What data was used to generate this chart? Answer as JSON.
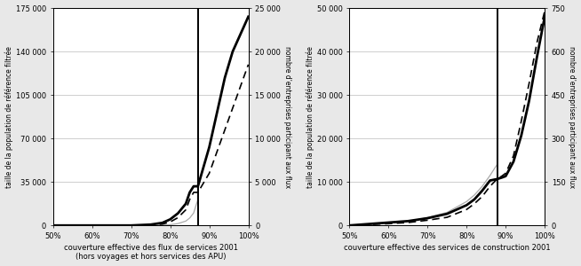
{
  "left": {
    "xlabel": "couverture effective des flux de services 2001\n(hors voyages et hors services des APU)",
    "ylabel_left": "taille de la population de référence filtrée",
    "ylabel_right": "nombre d'entreprises participant aux flux",
    "xlim": [
      0.5,
      1.0
    ],
    "ylim_left": [
      0,
      175000
    ],
    "ylim_right": [
      0,
      25000
    ],
    "yticks_left": [
      0,
      35000,
      70000,
      105000,
      140000,
      175000
    ],
    "ytick_labels_left": [
      "0",
      "35 000",
      "70 000",
      "105 000",
      "140 000",
      "175 000"
    ],
    "yticks_right": [
      0,
      5000,
      10000,
      15000,
      20000,
      25000
    ],
    "ytick_labels_right": [
      "0",
      "5 000",
      "10 000",
      "15 000",
      "20 000",
      "25 000"
    ],
    "xticks": [
      0.5,
      0.6,
      0.7,
      0.8,
      0.9,
      1.0
    ],
    "xtick_labels": [
      "50%",
      "60%",
      "70%",
      "80%",
      "90%",
      "100%"
    ],
    "vline_x": 0.871,
    "curve_left_x": [
      0.5,
      0.7,
      0.75,
      0.78,
      0.8,
      0.82,
      0.84,
      0.85,
      0.86,
      0.87,
      0.871,
      0.872,
      0.88,
      0.9,
      0.92,
      0.94,
      0.96,
      0.98,
      1.0
    ],
    "curve_left_y": [
      0,
      0,
      0,
      200,
      600,
      1500,
      3500,
      6000,
      10000,
      20000,
      175000,
      175000,
      175000,
      175000,
      175000,
      175000,
      175000,
      175000,
      175000
    ],
    "curve_thick_x": [
      0.5,
      0.7,
      0.75,
      0.78,
      0.8,
      0.82,
      0.84,
      0.85,
      0.86,
      0.871,
      0.9,
      0.92,
      0.94,
      0.96,
      0.98,
      1.0
    ],
    "curve_thick_y": [
      0,
      0,
      100,
      300,
      700,
      1400,
      2500,
      3800,
      4500,
      4500,
      9000,
      13000,
      17000,
      20000,
      22000,
      24000
    ],
    "curve_dash_x": [
      0.5,
      0.7,
      0.75,
      0.78,
      0.8,
      0.82,
      0.84,
      0.85,
      0.86,
      0.871,
      0.9,
      0.92,
      0.94,
      0.96,
      0.98,
      1.0
    ],
    "curve_dash_y": [
      0,
      0,
      50,
      150,
      400,
      900,
      1800,
      3000,
      3800,
      3800,
      6000,
      8500,
      11000,
      13500,
      16000,
      18500
    ]
  },
  "right": {
    "xlabel": "couverture effective des services de construction 2001",
    "ylabel_left": "taille de la population de référence filtrée",
    "ylabel_right": "nombre d'entreprises participant aux flux",
    "xlim": [
      0.5,
      1.0
    ],
    "ylim_left": [
      0,
      50000
    ],
    "ylim_right": [
      0,
      750
    ],
    "yticks_left": [
      0,
      10000,
      20000,
      30000,
      40000,
      50000
    ],
    "ytick_labels_left": [
      "0",
      "10 000",
      "20 000",
      "30 000",
      "40 000",
      "50 000"
    ],
    "yticks_right": [
      0,
      150,
      300,
      450,
      600,
      750
    ],
    "ytick_labels_right": [
      "0",
      "150",
      "300",
      "450",
      "600",
      "750"
    ],
    "xticks": [
      0.5,
      0.6,
      0.7,
      0.8,
      0.9,
      1.0
    ],
    "xtick_labels": [
      "50%",
      "60%",
      "70%",
      "80%",
      "90%",
      "100%"
    ],
    "vline_x": 0.878,
    "curve_left_x": [
      0.5,
      0.55,
      0.6,
      0.65,
      0.7,
      0.75,
      0.8,
      0.82,
      0.84,
      0.86,
      0.878,
      0.879,
      0.9,
      0.92,
      0.94,
      0.96,
      0.98,
      1.0
    ],
    "curve_left_y": [
      0,
      200,
      500,
      900,
      1800,
      3000,
      5500,
      7000,
      9000,
      11500,
      14000,
      50000,
      50000,
      50000,
      50000,
      50000,
      50000,
      50000
    ],
    "curve_thick_x": [
      0.5,
      0.55,
      0.6,
      0.65,
      0.7,
      0.75,
      0.8,
      0.82,
      0.84,
      0.86,
      0.878,
      0.89,
      0.9,
      0.92,
      0.94,
      0.96,
      0.98,
      1.0
    ],
    "curve_thick_y": [
      0,
      5,
      10,
      15,
      25,
      40,
      70,
      90,
      120,
      155,
      160,
      165,
      170,
      220,
      310,
      430,
      580,
      720
    ],
    "curve_dash_x": [
      0.5,
      0.55,
      0.6,
      0.65,
      0.7,
      0.75,
      0.8,
      0.82,
      0.84,
      0.86,
      0.878,
      0.89,
      0.9,
      0.92,
      0.94,
      0.96,
      0.98,
      1.0
    ],
    "curve_dash_y": [
      0,
      3,
      6,
      10,
      18,
      28,
      55,
      75,
      100,
      135,
      160,
      170,
      180,
      240,
      360,
      490,
      630,
      740
    ]
  },
  "bg_color": "#e8e8e8",
  "plot_bg": "#ffffff",
  "color_thin_grey": "#aaaaaa",
  "color_thick_black": "#000000",
  "color_dash_black": "#000000"
}
